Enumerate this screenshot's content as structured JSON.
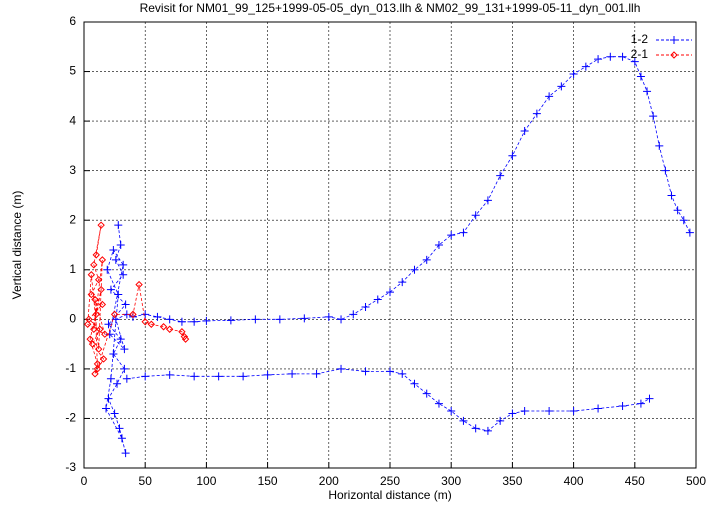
{
  "chart_data": {
    "type": "line",
    "title": "Revisit for NM01_99_125+1999-05-05_dyn_013.llh & NM02_99_131+1999-05-11_dyn_001.llh",
    "xlabel": "Horizontal distance (m)",
    "ylabel": "Vertical distance (m)",
    "xlim": [
      0,
      500
    ],
    "ylim": [
      -3,
      6
    ],
    "xticks": [
      0,
      50,
      100,
      150,
      200,
      250,
      300,
      350,
      400,
      450,
      500
    ],
    "yticks": [
      -3,
      -2,
      -1,
      0,
      1,
      2,
      3,
      4,
      5,
      6
    ],
    "grid": true,
    "legend": "top-right",
    "series": [
      {
        "name": "1-2",
        "color": "#0000ff",
        "marker": "plus",
        "x": [
          28,
          30,
          26,
          32,
          22,
          34,
          20,
          30,
          24,
          33,
          27,
          20,
          25,
          29,
          34,
          31,
          18,
          22,
          28,
          19,
          24,
          32,
          21,
          33,
          26,
          35,
          40,
          50,
          60,
          70,
          80,
          90,
          100,
          120,
          140,
          160,
          180,
          200,
          210,
          220,
          230,
          240,
          250,
          260,
          270,
          280,
          290,
          300,
          310,
          320,
          330,
          340,
          350,
          360,
          370,
          380,
          390,
          400,
          410,
          420,
          430,
          440,
          450,
          455,
          460,
          465,
          470,
          475,
          480,
          485,
          490,
          495,
          null,
          35,
          50,
          70,
          90,
          110,
          130,
          150,
          170,
          190,
          210,
          230,
          250,
          260,
          270,
          280,
          290,
          300,
          310,
          320,
          330,
          340,
          350,
          360,
          380,
          400,
          420,
          440,
          455,
          462
        ],
        "values": [
          1.9,
          1.5,
          1.2,
          0.9,
          0.6,
          0.3,
          -0.1,
          -0.4,
          -0.7,
          -1.0,
          -1.3,
          -1.6,
          -1.9,
          -2.2,
          -2.7,
          -2.4,
          -1.8,
          -1.2,
          0.5,
          1.0,
          1.4,
          1.1,
          -0.3,
          -0.6,
          0.0,
          0.1,
          0.05,
          0.1,
          0.05,
          0,
          -0.05,
          -0.05,
          -0.03,
          -0.02,
          0,
          0,
          0.02,
          0.05,
          0,
          0.1,
          0.25,
          0.4,
          0.55,
          0.75,
          1,
          1.2,
          1.5,
          1.7,
          1.75,
          2.1,
          2.4,
          2.9,
          3.3,
          3.8,
          4.15,
          4.5,
          4.7,
          4.95,
          5.1,
          5.25,
          5.3,
          5.3,
          5.2,
          4.9,
          4.6,
          4.1,
          3.5,
          3.0,
          2.5,
          2.2,
          2.0,
          1.75,
          null,
          -1.2,
          -1.15,
          -1.12,
          -1.15,
          -1.15,
          -1.15,
          -1.12,
          -1.1,
          -1.1,
          -1.0,
          -1.05,
          -1.05,
          -1.1,
          -1.3,
          -1.5,
          -1.7,
          -1.85,
          -2.05,
          -2.2,
          -2.25,
          -2.05,
          -1.9,
          -1.85,
          -1.85,
          -1.85,
          -1.8,
          -1.75,
          -1.7,
          -1.6
        ]
      },
      {
        "name": "2-1",
        "color": "#ff0000",
        "marker": "diamond",
        "x": [
          10,
          14,
          8,
          12,
          6,
          15,
          4,
          13,
          7,
          16,
          9,
          11,
          5,
          14,
          10,
          8,
          15,
          12,
          6,
          3,
          17,
          9,
          11,
          25,
          40,
          45,
          50,
          55,
          65,
          70,
          80,
          82,
          83
        ],
        "values": [
          1.3,
          1.9,
          1.1,
          0.8,
          0.5,
          0.3,
          0.0,
          -0.2,
          -0.5,
          -0.8,
          -1.1,
          -0.9,
          -0.4,
          0.6,
          0.1,
          -0.2,
          1.2,
          -0.6,
          0.9,
          -0.1,
          -0.3,
          0.4,
          -1.0,
          0.1,
          0.1,
          0.7,
          -0.05,
          -0.1,
          -0.15,
          -0.2,
          -0.25,
          -0.35,
          -0.4
        ]
      }
    ]
  }
}
